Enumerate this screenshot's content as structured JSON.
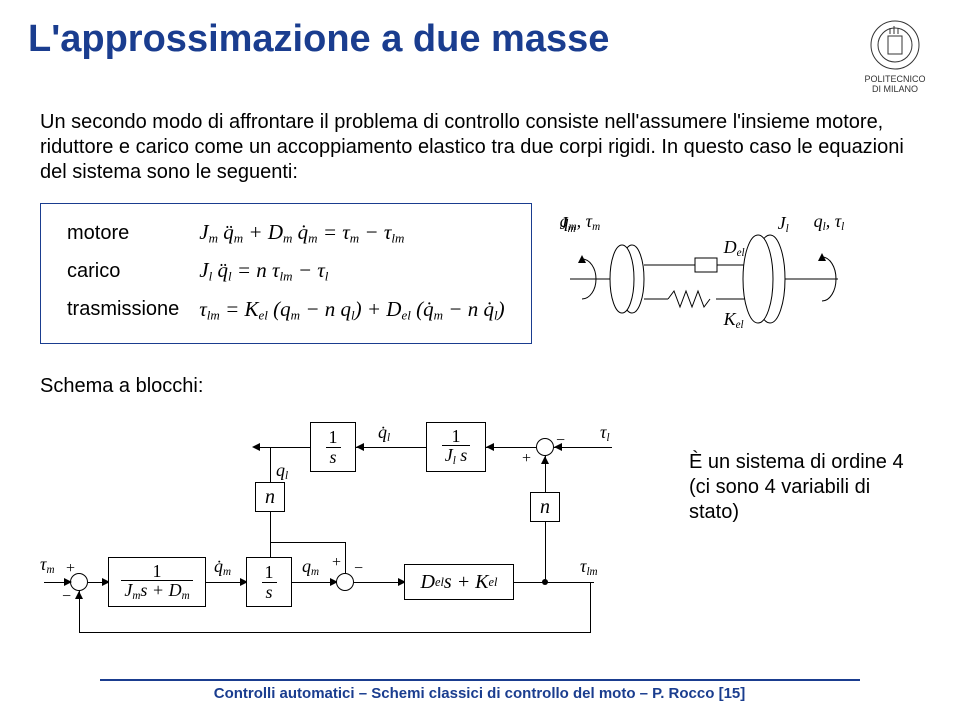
{
  "title": "L'approssimazione a due masse",
  "logo_caption": "POLITECNICO DI MILANO",
  "intro": "Un secondo modo di affrontare il problema di controllo consiste nell'assumere l'insieme motore, riduttore e carico come un accoppiamento elastico tra due corpi rigidi. In questo caso le equazioni del sistema sono le seguenti:",
  "equations": {
    "rows": [
      {
        "label": "motore",
        "math": "J<span class='sub'>m</span> q̈<span class='sub'>m</span> + D<span class='sub'>m</span> q̇<span class='sub'>m</span> = τ<span class='sub'>m</span> − τ<span class='sub'>lm</span>"
      },
      {
        "label": "carico",
        "math": "J<span class='sub'>l</span> q̈<span class='sub'>l</span> = n τ<span class='sub'>lm</span> − τ<span class='sub'>l</span>"
      },
      {
        "label": "trasmissione",
        "math": "τ<span class='sub'>lm</span> = K<span class='sub'>el</span> (q<span class='sub'>m</span> − n q<span class='sub'>l</span>) + D<span class='sub'>el</span> (q̇<span class='sub'>m</span> − n q̇<span class='sub'>l</span>)"
      }
    ]
  },
  "mech": {
    "left_label": "q<span class='sub'>m</span>, τ<span class='sub'>m</span>",
    "Jm": "J<span class='sub'>m</span>",
    "Del": "D<span class='sub'>el</span>",
    "Kel": "K<span class='sub'>el</span>",
    "Jl": "J<span class='sub'>l</span>",
    "right_label": "q<span class='sub'>l</span>, τ<span class='sub'>l</span>"
  },
  "schema_label": "Schema a blocchi:",
  "blocks": {
    "b1_num": "1",
    "b1_den": "J<span class='sub'>m</span>s + D<span class='sub'>m</span>",
    "b2_num": "1",
    "b2_den": "s",
    "b3_num": "1",
    "b3_den": "s",
    "b4_num": "1",
    "b4_den": "J<span class='sub'>l</span> s",
    "n1": "n",
    "n2": "n",
    "feedback": "D<span class='sub'>el</span> s + K<span class='sub'>el</span>"
  },
  "signals": {
    "taum": "τ<span class='sub'>m</span>",
    "qdm": "q̇<span class='sub'>m</span>",
    "qm": "q<span class='sub'>m</span>",
    "ql": "q<span class='sub'>l</span>",
    "qdl": "q̇<span class='sub'>l</span>",
    "taul": "τ<span class='sub'>l</span>",
    "taulm": "τ<span class='sub'>lm</span>"
  },
  "note": "È un sistema di ordine 4 (ci sono 4 variabili di stato)",
  "footer": "Controlli automatici – Schemi classici di controllo del moto – P. Rocco [15]",
  "colors": {
    "accent": "#1a3d8f",
    "text": "#000000",
    "bg": "#ffffff"
  }
}
